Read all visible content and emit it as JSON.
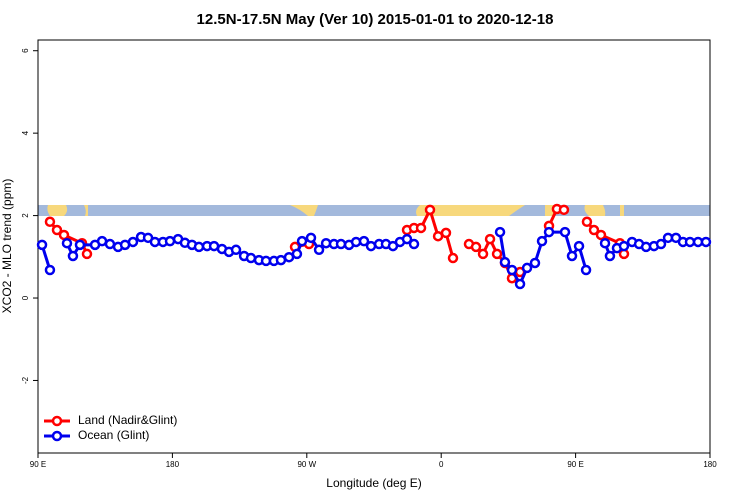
{
  "chart_data": {
    "type": "line",
    "title": "12.5N-17.5N May (Ver 10)   2015-01-01 to 2020-12-18",
    "xlabel": "Longitude (deg E)",
    "ylabel": "XCO2 - MLO trend (ppm)",
    "xlim": [
      90,
      540
    ],
    "xticks": [
      {
        "value": 90,
        "label": "90 E"
      },
      180,
      {
        "value": 270,
        "label": "90 W"
      },
      {
        "value": 360,
        "label": "0"
      },
      {
        "value": 450,
        "label": "90 E"
      },
      {
        "value": 540,
        "label": "180"
      }
    ],
    "ylim": [
      -3.76,
      6.26
    ],
    "yticks": [
      -2,
      0,
      2,
      4,
      6
    ],
    "legend": "bottom-left",
    "series": [
      {
        "name": "Land (Nadir&Glint)",
        "color": "#ff0000",
        "x": [
          98.0,
          102.7,
          107.4,
          119.5,
          122.8,
          null,
          262.1,
          271.5,
          null,
          337.1,
          341.8,
          346.5,
          352.5,
          357.9,
          363.2,
          367.9,
          null,
          378.6,
          383.3,
          388.0,
          392.7,
          397.4,
          402.7,
          407.4,
          412.8,
          null,
          432.2,
          437.5,
          442.2,
          null,
          457.6,
          462.3,
          467.0,
          479.7,
          482.4
        ],
        "values": [
          1.85,
          1.65,
          1.53,
          1.33,
          1.07,
          null,
          1.24,
          1.31,
          null,
          1.65,
          1.7,
          1.7,
          2.14,
          1.5,
          1.58,
          0.97,
          null,
          1.31,
          1.24,
          1.07,
          1.43,
          1.07,
          0.85,
          0.48,
          0.63,
          null,
          1.75,
          2.16,
          2.14,
          null,
          1.85,
          1.65,
          1.53,
          1.33,
          1.07
        ]
      },
      {
        "name": "Ocean (Glint)",
        "color": "#0000ee",
        "x": [
          92.7,
          98.0,
          null,
          109.4,
          113.4,
          118.1,
          128.2,
          132.9,
          138.2,
          143.6,
          148.3,
          153.6,
          159.0,
          163.7,
          168.3,
          173.7,
          178.4,
          183.8,
          188.4,
          193.1,
          197.8,
          203.2,
          207.9,
          213.2,
          217.9,
          222.6,
          228.0,
          232.6,
          238.0,
          242.7,
          248.0,
          252.7,
          258.1,
          263.4,
          266.8,
          272.8,
          278.2,
          282.9,
          288.2,
          292.9,
          298.3,
          303.0,
          308.3,
          313.0,
          318.4,
          323.0,
          327.7,
          332.4,
          337.1,
          341.8,
          null,
          399.4,
          402.7,
          407.4,
          412.8,
          417.5,
          422.8,
          427.5,
          432.2,
          442.9,
          447.6,
          452.3,
          457.0,
          null,
          469.7,
          473.0,
          477.7,
          482.4,
          487.8,
          492.5,
          497.2,
          502.5,
          507.2,
          511.9,
          517.2,
          521.9,
          526.6,
          532.0,
          537.3
        ],
        "values": [
          1.29,
          0.68,
          null,
          1.33,
          1.02,
          1.29,
          1.29,
          1.38,
          1.31,
          1.24,
          1.29,
          1.36,
          1.48,
          1.46,
          1.36,
          1.36,
          1.38,
          1.43,
          1.34,
          1.29,
          1.24,
          1.26,
          1.26,
          1.19,
          1.12,
          1.17,
          1.02,
          0.97,
          0.92,
          0.9,
          0.9,
          0.92,
          0.99,
          1.07,
          1.38,
          1.46,
          1.17,
          1.33,
          1.31,
          1.31,
          1.29,
          1.36,
          1.38,
          1.26,
          1.31,
          1.31,
          1.26,
          1.36,
          1.43,
          1.31,
          null,
          1.6,
          0.87,
          0.68,
          0.34,
          0.73,
          0.85,
          1.38,
          1.6,
          1.6,
          1.02,
          1.26,
          0.68,
          null,
          1.33,
          1.02,
          1.21,
          1.26,
          1.36,
          1.31,
          1.24,
          1.26,
          1.31,
          1.46,
          1.46,
          1.36,
          1.36,
          1.36,
          1.36
        ]
      }
    ]
  }
}
